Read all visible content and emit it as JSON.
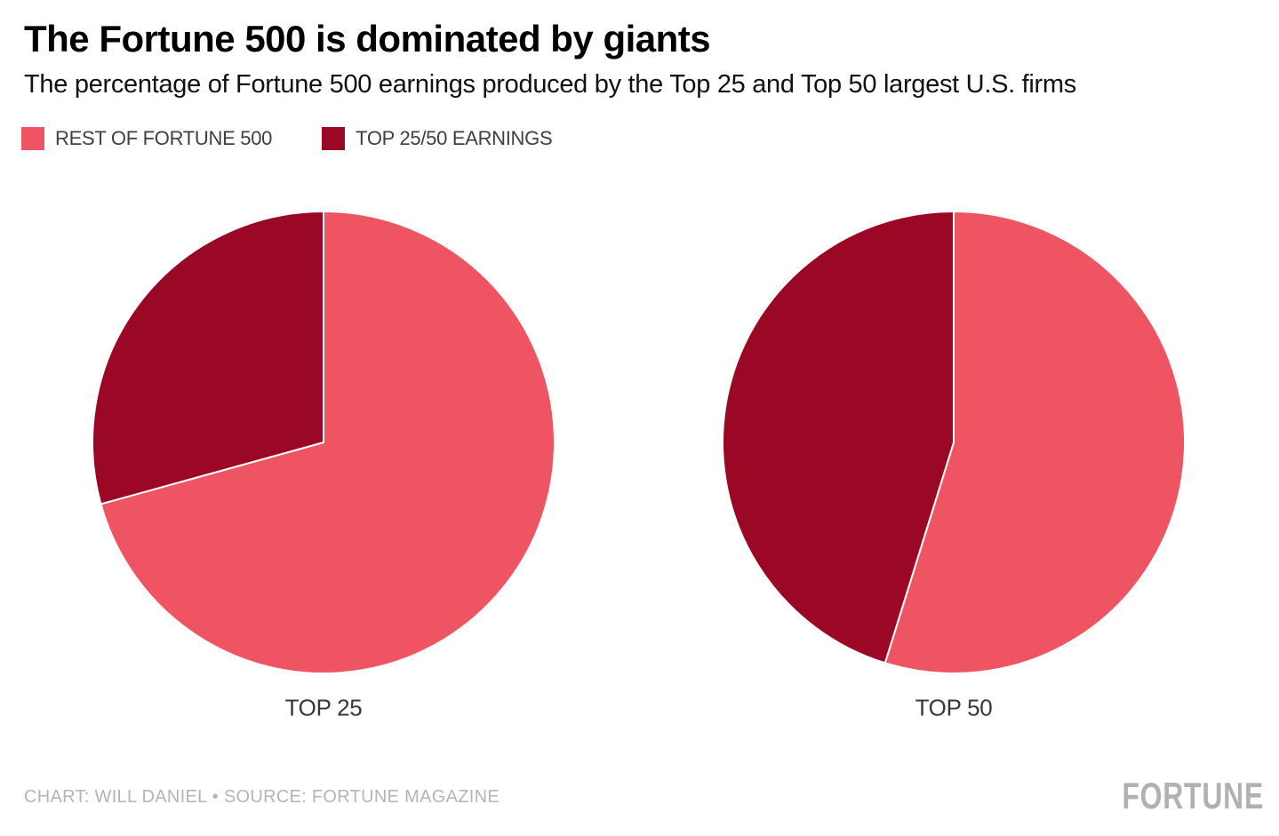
{
  "chart_data": {
    "type": "pie",
    "title": "The Fortune 500 is dominated by giants",
    "subtitle": "The percentage of Fortune 500 earnings produced by the Top 25 and Top 50 largest U.S. firms",
    "legend_position": "top-left",
    "start_angle": "12-o-clock",
    "direction": "clockwise",
    "grid": false,
    "legend": [
      {
        "label": "REST OF FORTUNE 500",
        "color": "#ee5461"
      },
      {
        "label": "TOP 25/50 EARNINGS",
        "color": "#9a0825"
      }
    ],
    "pies": [
      {
        "caption": "TOP 25",
        "slices": [
          {
            "name": "REST OF FORTUNE 500",
            "value": 70.7,
            "label": "70.7%",
            "color": "#ee5461",
            "label_color": "#1a1a1a"
          },
          {
            "name": "TOP 25/50 EARNINGS",
            "value": 29.3,
            "label": "29.3%",
            "color": "#9a0825",
            "label_color": "#ffffff"
          }
        ]
      },
      {
        "caption": "TOP 50",
        "slices": [
          {
            "name": "REST OF FORTUNE 500",
            "value": 54.8,
            "label": "54.8%",
            "color": "#ee5461",
            "label_color": "#1a1a1a"
          },
          {
            "name": "TOP 25/50 EARNINGS",
            "value": 45.2,
            "label": "45.2%",
            "color": "#9a0825",
            "label_color": "#ffffff"
          }
        ]
      }
    ]
  },
  "footer": {
    "credit": "CHART: WILL DANIEL • SOURCE: FORTUNE MAGAZINE",
    "logo": "FORTUNE"
  }
}
